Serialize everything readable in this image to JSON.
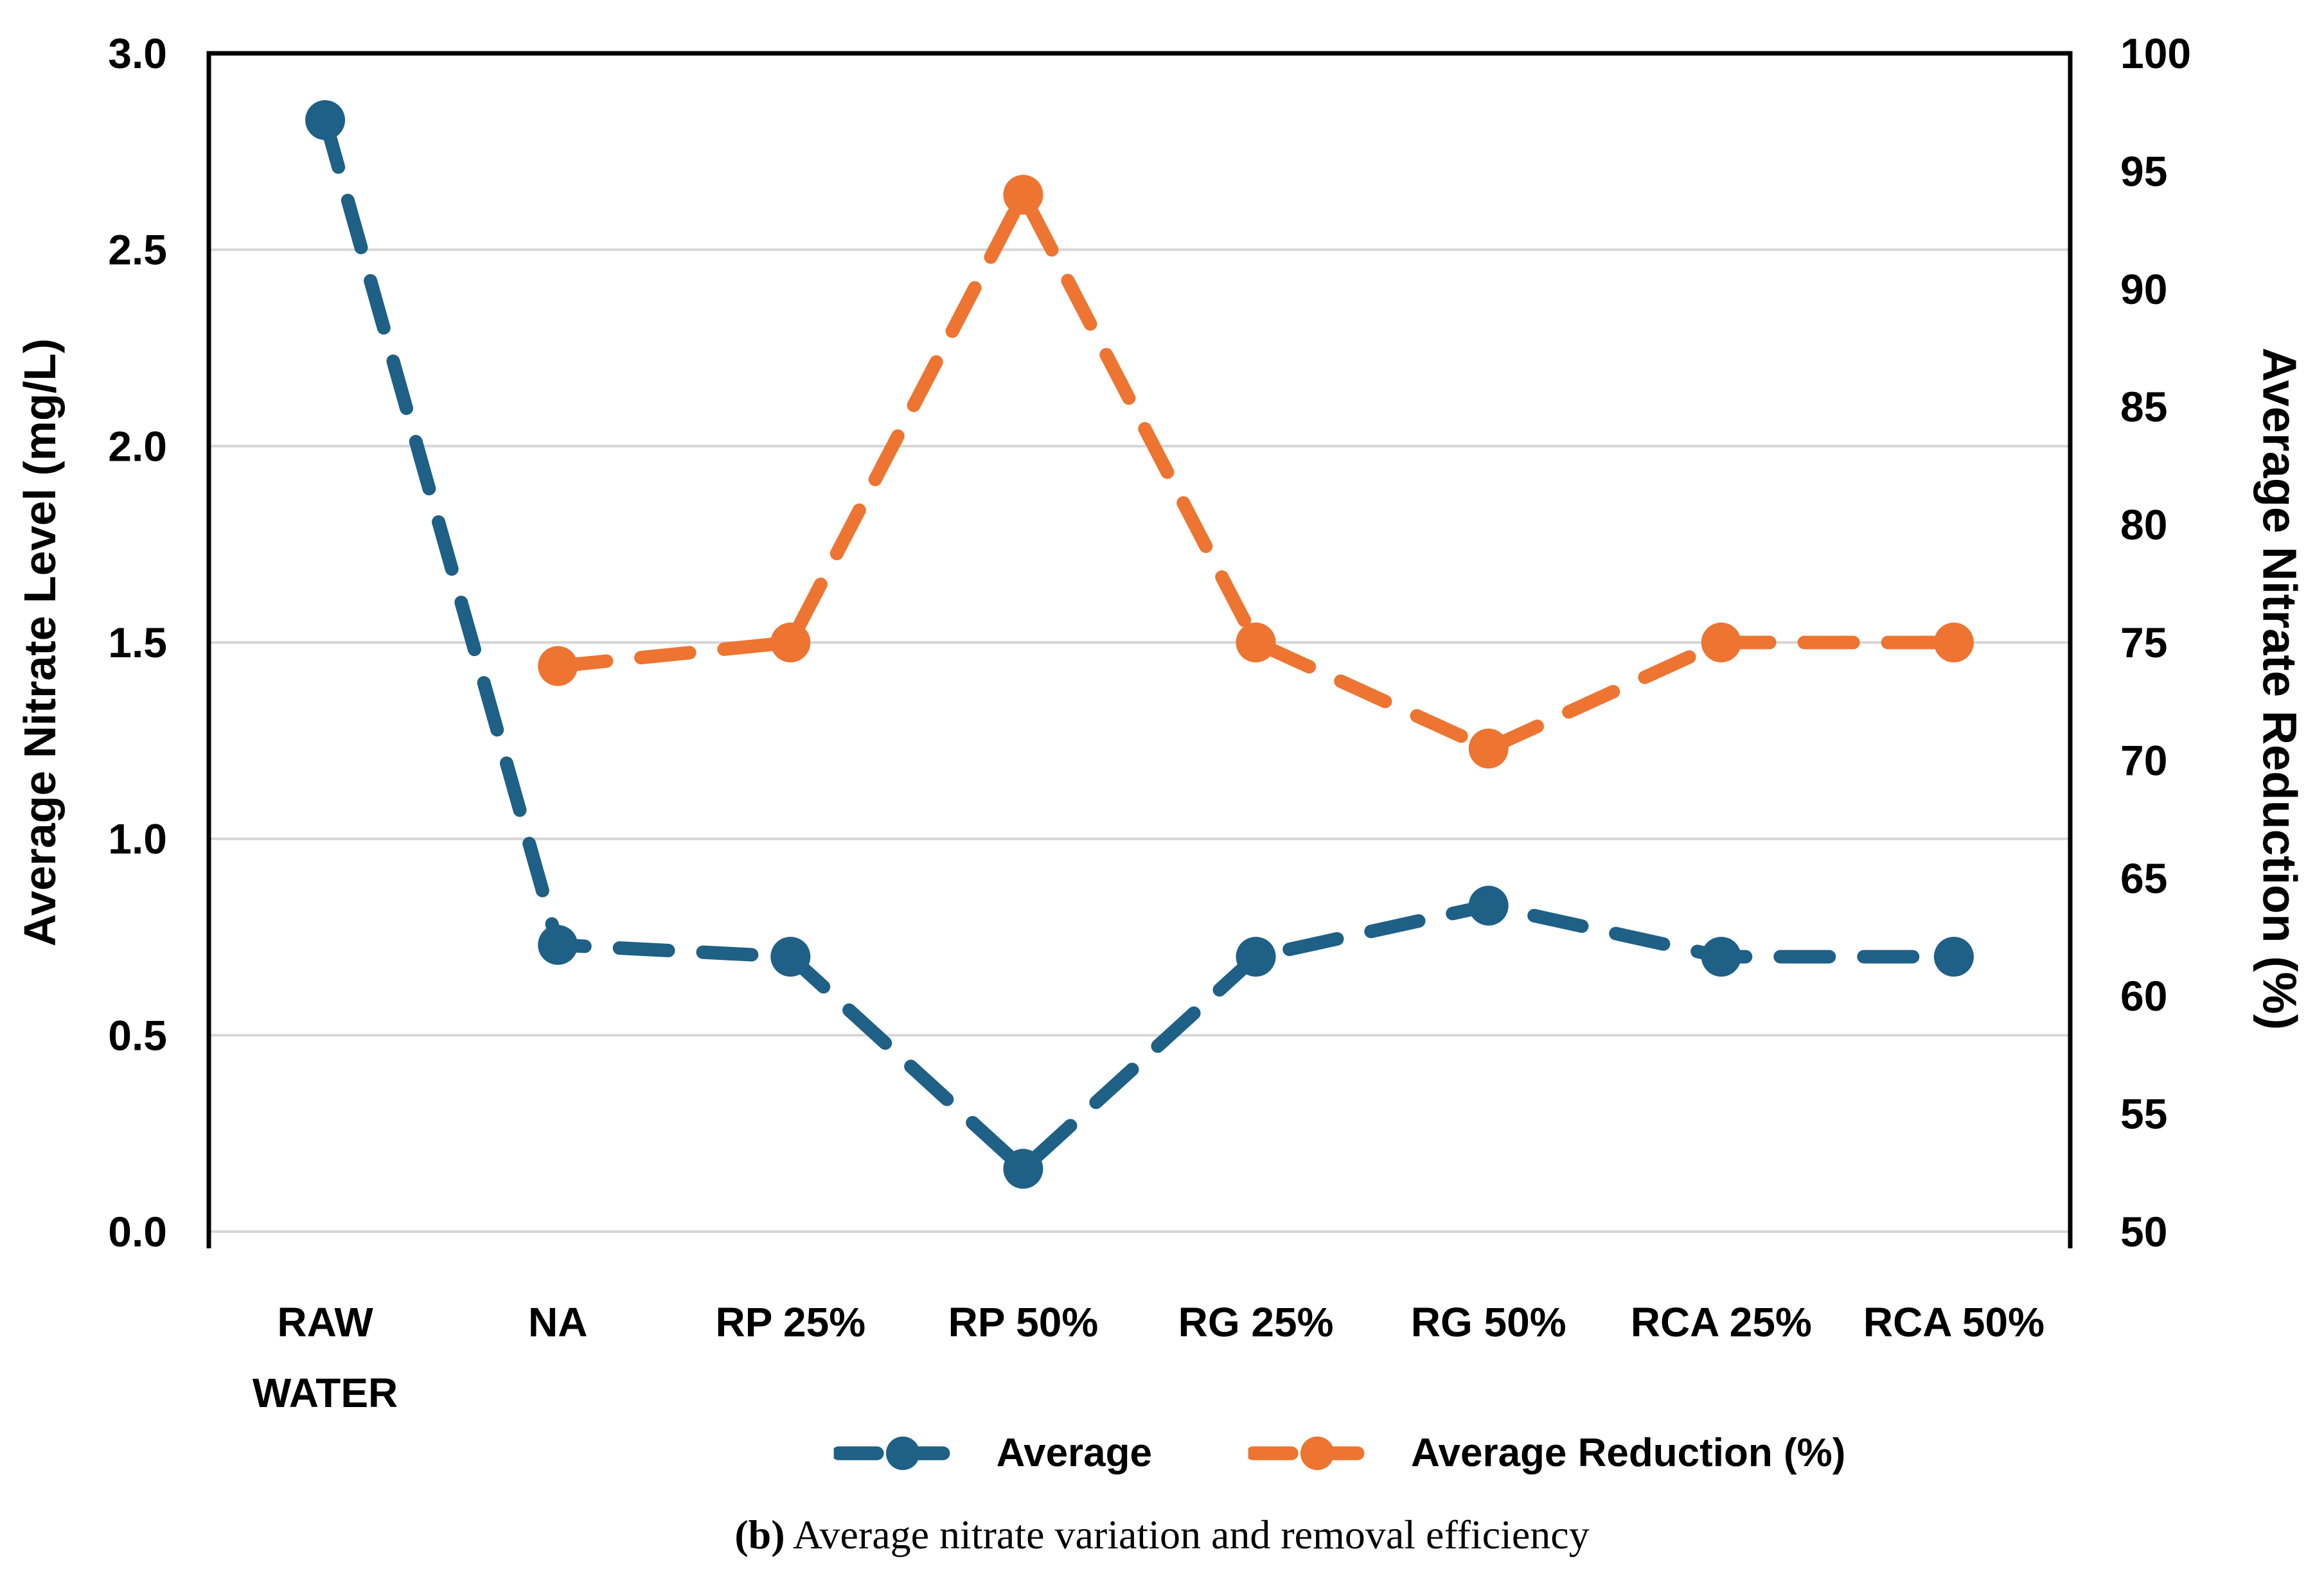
{
  "chart_data": {
    "type": "line",
    "categories": [
      "RAW WATER",
      "NA",
      "RP 25%",
      "RP 50%",
      "RG 25%",
      "RG 50%",
      "RCA 25%",
      "RCA 50%"
    ],
    "series": [
      {
        "name": "Average",
        "axis": "left",
        "color": "#1E6086",
        "values": [
          2.83,
          0.73,
          0.7,
          0.16,
          0.7,
          0.83,
          0.7,
          0.7
        ]
      },
      {
        "name": "Average Reduction (%)",
        "axis": "right",
        "color": "#ED7431",
        "values": [
          null,
          74,
          75,
          94,
          75,
          70.5,
          75,
          75
        ]
      }
    ],
    "left_axis": {
      "label": "Average Nitrate Level (mg/L)",
      "min": 0,
      "max": 3,
      "tick_labels": [
        "0.0",
        "0.5",
        "1.0",
        "1.5",
        "2.0",
        "2.5",
        "3.0"
      ]
    },
    "right_axis": {
      "label": "Average Nitrate Reduction (%)",
      "min": 50,
      "max": 100,
      "tick_labels": [
        "50",
        "55",
        "60",
        "65",
        "70",
        "75",
        "80",
        "85",
        "90",
        "95",
        "100"
      ]
    },
    "grid": true,
    "line_style": "dashed",
    "legend_position": "bottom"
  },
  "caption": {
    "prefix": "(b)",
    "text": " Average nitrate variation and removal efficiency"
  },
  "colors": {
    "gridline": "#D6D6D6",
    "frame": "#000000",
    "text": "#000000"
  }
}
